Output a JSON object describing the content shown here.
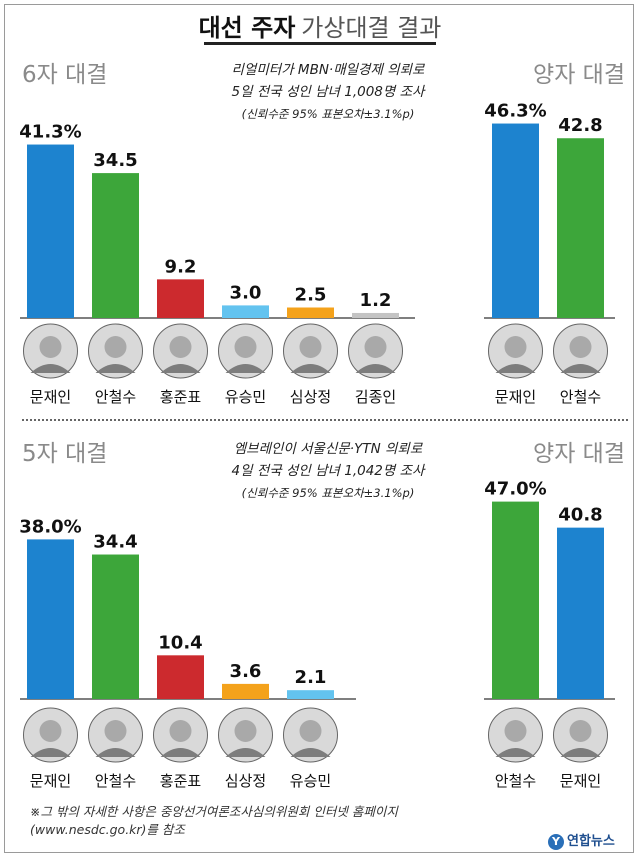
{
  "title": {
    "bold": "대선 주자",
    "light": "가상대결 결과"
  },
  "chart_data": [
    {
      "type": "bar",
      "title": "6자 대결",
      "source_lines": [
        "리얼미터가 MBN·매일경제 의뢰로",
        "5일 전국 성인 남녀 1,008명 조사",
        "(신뢰수준 95% 표본오차±3.1%p)"
      ],
      "categories": [
        "문재인",
        "안철수",
        "홍준표",
        "유승민",
        "심상정",
        "김종인"
      ],
      "value_labels": [
        "41.3%",
        "34.5",
        "9.2",
        "3.0",
        "2.5",
        "1.2"
      ],
      "values": [
        41.3,
        34.5,
        9.2,
        3.0,
        2.5,
        1.2
      ],
      "colors": [
        "#1d83cf",
        "#3da63a",
        "#cc2a2e",
        "#63c3ef",
        "#f4a21b",
        "#c4c4c4"
      ]
    },
    {
      "type": "bar",
      "title": "양자 대결",
      "categories": [
        "문재인",
        "안철수"
      ],
      "value_labels": [
        "46.3%",
        "42.8"
      ],
      "values": [
        46.3,
        42.8
      ],
      "colors": [
        "#1d83cf",
        "#3da63a"
      ]
    },
    {
      "type": "bar",
      "title": "5자 대결",
      "source_lines": [
        "엠브레인이 서울신문·YTN 의뢰로",
        "4일 전국 성인 남녀 1,042명 조사",
        "(신뢰수준 95% 표본오차±3.1%p)"
      ],
      "categories": [
        "문재인",
        "안철수",
        "홍준표",
        "심상정",
        "유승민"
      ],
      "value_labels": [
        "38.0%",
        "34.4",
        "10.4",
        "3.6",
        "2.1"
      ],
      "values": [
        38.0,
        34.4,
        10.4,
        3.6,
        2.1
      ],
      "colors": [
        "#1d83cf",
        "#3da63a",
        "#cc2a2e",
        "#f4a21b",
        "#63c3ef"
      ]
    },
    {
      "type": "bar",
      "title": "양자 대결",
      "categories": [
        "안철수",
        "문재인"
      ],
      "value_labels": [
        "47.0%",
        "40.8"
      ],
      "values": [
        47.0,
        40.8
      ],
      "colors": [
        "#3da63a",
        "#1d83cf"
      ]
    }
  ],
  "footnote": [
    "※그 밖의 자세한 사항은 중앙선거여론조사심의위원회 인터넷 홈페이지",
    "(www.nesdc.go.kr)를 참조"
  ],
  "logo": {
    "mark": "Y",
    "text": "연합뉴스"
  }
}
